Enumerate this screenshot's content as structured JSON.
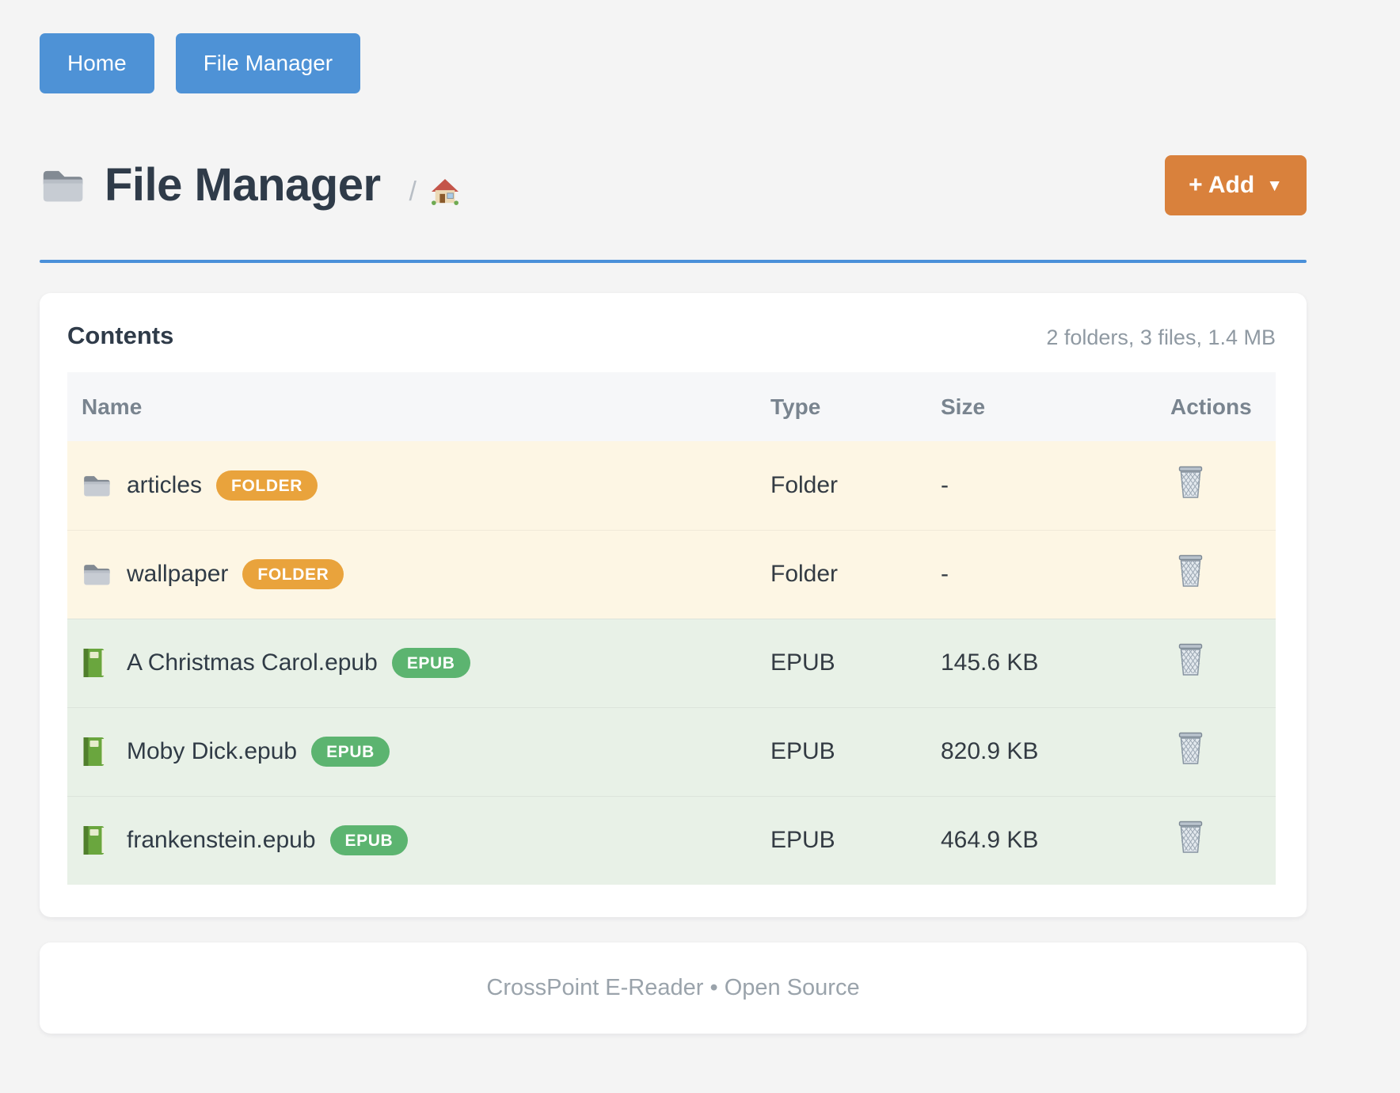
{
  "nav": {
    "home_label": "Home",
    "file_manager_label": "File Manager"
  },
  "header": {
    "title": "File Manager",
    "title_icon": "folder-icon",
    "breadcrumb_separator": "/",
    "breadcrumb_home_icon": "house-icon",
    "add_button_label": "+ Add",
    "add_button_caret": "▼"
  },
  "contents": {
    "heading": "Contents",
    "summary": "2 folders, 3 files, 1.4 MB",
    "columns": {
      "name": "Name",
      "type": "Type",
      "size": "Size",
      "actions": "Actions"
    },
    "rows": [
      {
        "kind": "folder",
        "icon": "folder-icon",
        "name": "articles",
        "badge": "FOLDER",
        "type": "Folder",
        "size": "-",
        "action_icon": "trash-icon"
      },
      {
        "kind": "folder",
        "icon": "folder-icon",
        "name": "wallpaper",
        "badge": "FOLDER",
        "type": "Folder",
        "size": "-",
        "action_icon": "trash-icon"
      },
      {
        "kind": "epub",
        "icon": "book-icon",
        "name": "A Christmas Carol.epub",
        "badge": "EPUB",
        "type": "EPUB",
        "size": "145.6 KB",
        "action_icon": "trash-icon"
      },
      {
        "kind": "epub",
        "icon": "book-icon",
        "name": "Moby Dick.epub",
        "badge": "EPUB",
        "type": "EPUB",
        "size": "820.9 KB",
        "action_icon": "trash-icon"
      },
      {
        "kind": "epub",
        "icon": "book-icon",
        "name": "frankenstein.epub",
        "badge": "EPUB",
        "type": "EPUB",
        "size": "464.9 KB",
        "action_icon": "trash-icon"
      }
    ]
  },
  "footer": {
    "text": "CrossPoint E-Reader • Open Source"
  },
  "colors": {
    "page_background": "#f4f4f4",
    "nav_button_blue": "#4e92d6",
    "title_text": "#2f3b49",
    "divider_blue": "#4a90d9",
    "add_button_orange": "#d9813c",
    "badge_folder_orange": "#e9a33c",
    "badge_epub_green": "#5cb470",
    "row_folder_background": "#fdf6e4",
    "row_file_background": "#e8f1e7",
    "table_header_background": "#f6f7f9",
    "muted_text": "#8f99a2"
  }
}
